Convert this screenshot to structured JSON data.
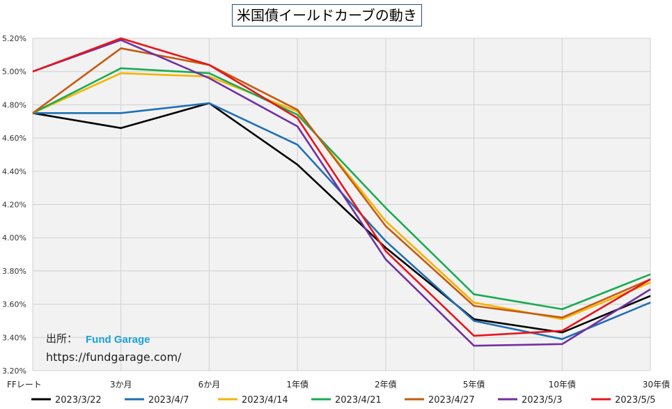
{
  "chart_data": {
    "type": "line",
    "title": "米国債イールドカーブの動き",
    "categories": [
      "FFレート",
      "3か月",
      "6か月",
      "1年債",
      "2年債",
      "5年債",
      "10年債",
      "30年債"
    ],
    "ylim": [
      3.2,
      5.2
    ],
    "yticks": [
      "3.20%",
      "3.40%",
      "3.60%",
      "3.80%",
      "4.00%",
      "4.20%",
      "4.40%",
      "4.60%",
      "4.80%",
      "5.00%",
      "5.20%"
    ],
    "grid": true,
    "legend_position": "bottom",
    "series": [
      {
        "name": "2023/3/22",
        "color": "#000000",
        "values": [
          4.75,
          4.66,
          4.81,
          4.44,
          3.94,
          3.51,
          3.43,
          3.65
        ]
      },
      {
        "name": "2023/4/7",
        "color": "#1f6fb4",
        "values": [
          4.75,
          4.75,
          4.81,
          4.56,
          3.98,
          3.5,
          3.39,
          3.61
        ]
      },
      {
        "name": "2023/4/14",
        "color": "#f4b400",
        "values": [
          4.75,
          4.99,
          4.97,
          4.76,
          4.1,
          3.61,
          3.51,
          3.73
        ]
      },
      {
        "name": "2023/4/21",
        "color": "#1aab52",
        "values": [
          4.75,
          5.02,
          4.99,
          4.74,
          4.18,
          3.66,
          3.57,
          3.78
        ]
      },
      {
        "name": "2023/4/27",
        "color": "#c55a11",
        "values": [
          4.75,
          5.14,
          5.04,
          4.77,
          4.07,
          3.59,
          3.52,
          3.75
        ]
      },
      {
        "name": "2023/5/3",
        "color": "#7030a0",
        "values": [
          5.0,
          5.19,
          4.96,
          4.67,
          3.87,
          3.35,
          3.36,
          3.69
        ]
      },
      {
        "name": "2023/5/5",
        "color": "#e8141b",
        "values": [
          5.0,
          5.2,
          5.04,
          4.72,
          3.92,
          3.41,
          3.44,
          3.75
        ]
      }
    ]
  },
  "source": {
    "label": "出所：",
    "name": "Fund Garage",
    "url": "https://fundgarage.com/"
  }
}
